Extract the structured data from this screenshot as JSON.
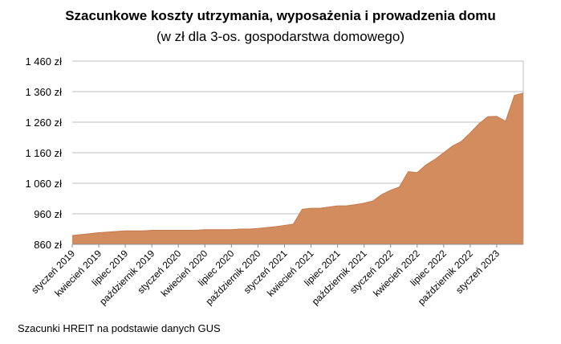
{
  "chart_data": {
    "type": "area",
    "title": "Szacunkowe koszty utrzymania, wyposażenia i prowadzenia domu",
    "subtitle": "(w zł dla 3-os. gospodarstwa domowego)",
    "xlabel": "",
    "ylabel": "",
    "ylim": [
      860,
      1460
    ],
    "yticks": [
      860,
      960,
      1060,
      1160,
      1260,
      1360,
      1460
    ],
    "ytick_labels": [
      "860 zł",
      "960 zł",
      "1 060 zł",
      "1 160 zł",
      "1 260 zł",
      "1 360 zł",
      "1 460 zł"
    ],
    "grid": true,
    "legend": "none",
    "fill_color": "#D28C5E",
    "grid_color": "#BFBFBF",
    "x_labels": [
      "styczeń 2019",
      "kwiecień 2019",
      "lipiec 2019",
      "październik 2019",
      "styczeń 2020",
      "kwiecień 2020",
      "lipiec 2020",
      "październik 2020",
      "styczeń 2021",
      "kwiecień 2021",
      "lipiec 2021",
      "październik 2021",
      "styczeń 2022",
      "kwiecień 2022",
      "lipiec 2022",
      "październik 2022",
      "styczeń 2023"
    ],
    "x": [
      "2019-01",
      "2019-02",
      "2019-03",
      "2019-04",
      "2019-05",
      "2019-06",
      "2019-07",
      "2019-08",
      "2019-09",
      "2019-10",
      "2019-11",
      "2019-12",
      "2020-01",
      "2020-02",
      "2020-03",
      "2020-04",
      "2020-05",
      "2020-06",
      "2020-07",
      "2020-08",
      "2020-09",
      "2020-10",
      "2020-11",
      "2020-12",
      "2021-01",
      "2021-02",
      "2021-03",
      "2021-04",
      "2021-05",
      "2021-06",
      "2021-07",
      "2021-08",
      "2021-09",
      "2021-10",
      "2021-11",
      "2021-12",
      "2022-01",
      "2022-02",
      "2022-03",
      "2022-04",
      "2022-05",
      "2022-06",
      "2022-07",
      "2022-08",
      "2022-09",
      "2022-10",
      "2022-11",
      "2022-12",
      "2023-01",
      "2023-02",
      "2023-03",
      "2023-04"
    ],
    "values": [
      889,
      892,
      895,
      898,
      900,
      902,
      904,
      904,
      904,
      906,
      906,
      906,
      906,
      906,
      906,
      908,
      908,
      908,
      908,
      910,
      910,
      912,
      915,
      918,
      922,
      926,
      975,
      978,
      978,
      982,
      986,
      986,
      990,
      995,
      1002,
      1023,
      1037,
      1048,
      1098,
      1095,
      1120,
      1138,
      1160,
      1182,
      1197,
      1225,
      1255,
      1278,
      1279,
      1263,
      1348,
      1355
    ]
  },
  "source": "Szacunki HREIT na podstawie danych GUS"
}
